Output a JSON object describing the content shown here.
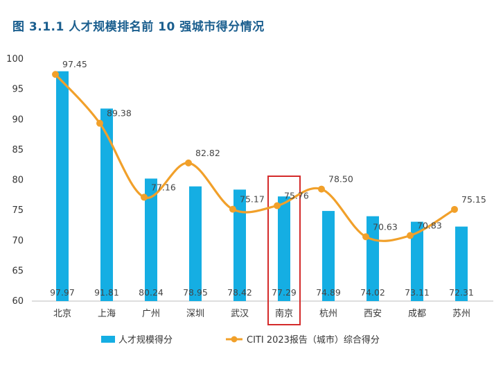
{
  "chart_data": {
    "type": "bar",
    "title": "图 3.1.1 人才规模排名前 10 强城市得分情况",
    "categories": [
      "北京",
      "上海",
      "广州",
      "深圳",
      "武汉",
      "南京",
      "杭州",
      "西安",
      "成都",
      "苏州"
    ],
    "series": [
      {
        "name": "人才规模得分",
        "type": "bar",
        "color": "#15aee3",
        "values": [
          97.97,
          91.81,
          80.24,
          78.95,
          78.42,
          77.29,
          74.89,
          74.02,
          73.11,
          72.31
        ],
        "labels": [
          "97.97",
          "91.81",
          "80.24",
          "78.95",
          "78.42",
          "77.29",
          "74.89",
          "74.02",
          "73.11",
          "72.31"
        ]
      },
      {
        "name": "CITI 2023报告（城市）综合得分",
        "type": "line",
        "color": "#f1a02a",
        "values": [
          97.45,
          89.38,
          77.16,
          82.82,
          75.17,
          75.76,
          78.5,
          70.63,
          70.83,
          75.15
        ],
        "labels": [
          "97.45",
          "89.38",
          "77.16",
          "82.82",
          "75.17",
          "75.76",
          "78.50",
          "70.63",
          "70.83",
          "75.15"
        ]
      }
    ],
    "y_ticks": [
      "60",
      "65",
      "70",
      "75",
      "80",
      "85",
      "90",
      "95",
      "100"
    ],
    "ylim": [
      60,
      100
    ],
    "grid": false,
    "legend_position": "bottom",
    "highlight_category": "南京",
    "highlight_color": "#d42a2a"
  }
}
